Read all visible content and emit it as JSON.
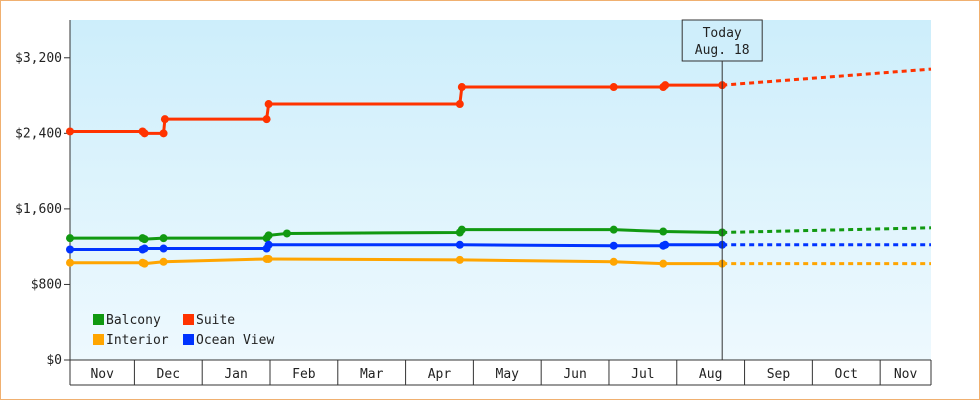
{
  "chart_data": {
    "type": "line",
    "today": {
      "label": "Today",
      "date": "Aug. 18",
      "month_index": 9.62
    },
    "xlim": [
      0,
      12.7
    ],
    "ylim": [
      0,
      3600
    ],
    "y_ticks": [
      {
        "value": 0,
        "label": "$0"
      },
      {
        "value": 800,
        "label": "$800"
      },
      {
        "value": 1600,
        "label": "$1,600"
      },
      {
        "value": 2400,
        "label": "$2,400"
      },
      {
        "value": 3200,
        "label": "$3,200"
      }
    ],
    "x_months": [
      {
        "label": "Nov",
        "start": 0,
        "end": 0.95
      },
      {
        "label": "Dec",
        "start": 0.95,
        "end": 1.95
      },
      {
        "label": "Jan",
        "start": 1.95,
        "end": 2.95
      },
      {
        "label": "Feb",
        "start": 2.95,
        "end": 3.95
      },
      {
        "label": "Mar",
        "start": 3.95,
        "end": 4.95
      },
      {
        "label": "Apr",
        "start": 4.95,
        "end": 5.95
      },
      {
        "label": "May",
        "start": 5.95,
        "end": 6.95
      },
      {
        "label": "Jun",
        "start": 6.95,
        "end": 7.95
      },
      {
        "label": "Jul",
        "start": 7.95,
        "end": 8.95
      },
      {
        "label": "Aug",
        "start": 8.95,
        "end": 9.95
      },
      {
        "label": "Sep",
        "start": 9.95,
        "end": 10.95
      },
      {
        "label": "Oct",
        "start": 10.95,
        "end": 11.95
      },
      {
        "label": "Nov",
        "start": 11.95,
        "end": 12.7
      }
    ],
    "series": [
      {
        "name": "Suite",
        "color": "#ff3300",
        "points": [
          [
            0,
            2420
          ],
          [
            1.07,
            2420
          ],
          [
            1.1,
            2400
          ],
          [
            1.38,
            2400
          ],
          [
            1.4,
            2550
          ],
          [
            2.9,
            2550
          ],
          [
            2.93,
            2710
          ],
          [
            5.75,
            2710
          ],
          [
            5.78,
            2890
          ],
          [
            8.02,
            2890
          ],
          [
            8.75,
            2890
          ],
          [
            8.78,
            2910
          ],
          [
            9.62,
            2910
          ]
        ],
        "projection": [
          [
            9.62,
            2910
          ],
          [
            12.7,
            3080
          ]
        ]
      },
      {
        "name": "Balcony",
        "color": "#119911",
        "points": [
          [
            0,
            1290
          ],
          [
            1.07,
            1290
          ],
          [
            1.1,
            1280
          ],
          [
            1.38,
            1290
          ],
          [
            2.9,
            1290
          ],
          [
            2.93,
            1320
          ],
          [
            3.2,
            1340
          ],
          [
            5.75,
            1350
          ],
          [
            5.78,
            1380
          ],
          [
            8.02,
            1380
          ],
          [
            8.75,
            1360
          ],
          [
            9.62,
            1350
          ]
        ],
        "projection": [
          [
            9.62,
            1350
          ],
          [
            12.7,
            1400
          ]
        ]
      },
      {
        "name": "Ocean View",
        "color": "#0033ff",
        "points": [
          [
            0,
            1170
          ],
          [
            1.07,
            1170
          ],
          [
            1.1,
            1180
          ],
          [
            1.38,
            1180
          ],
          [
            2.9,
            1180
          ],
          [
            2.93,
            1220
          ],
          [
            5.75,
            1220
          ],
          [
            5.78,
            1220
          ],
          [
            8.02,
            1210
          ],
          [
            8.75,
            1210
          ],
          [
            8.78,
            1220
          ],
          [
            9.62,
            1220
          ]
        ],
        "projection": [
          [
            9.62,
            1220
          ],
          [
            12.7,
            1220
          ]
        ]
      },
      {
        "name": "Interior",
        "color": "#ffa500",
        "points": [
          [
            0,
            1030
          ],
          [
            1.07,
            1030
          ],
          [
            1.1,
            1020
          ],
          [
            1.38,
            1040
          ],
          [
            2.9,
            1070
          ],
          [
            2.93,
            1070
          ],
          [
            5.75,
            1060
          ],
          [
            5.78,
            1060
          ],
          [
            8.02,
            1040
          ],
          [
            8.75,
            1020
          ],
          [
            9.62,
            1020
          ]
        ],
        "projection": [
          [
            9.62,
            1020
          ],
          [
            12.7,
            1020
          ]
        ]
      }
    ],
    "markers": {
      "Suite": [
        0,
        1.07,
        1.1,
        1.38,
        1.4,
        2.9,
        2.93,
        5.75,
        5.78,
        8.02,
        8.75,
        8.78,
        9.62
      ],
      "Balcony": [
        0,
        1.07,
        1.1,
        1.38,
        2.9,
        2.93,
        3.2,
        5.75,
        5.78,
        8.02,
        8.75,
        9.62
      ],
      "Ocean View": [
        0,
        1.07,
        1.1,
        1.38,
        2.9,
        2.93,
        5.75,
        8.02,
        8.75,
        8.78,
        9.62
      ],
      "Interior": [
        0,
        1.07,
        1.1,
        1.38,
        2.9,
        2.93,
        5.75,
        8.02,
        8.75,
        9.62
      ]
    },
    "legend": {
      "placement": "bottom-left",
      "entries": [
        {
          "name": "Balcony",
          "color": "#119911"
        },
        {
          "name": "Suite",
          "color": "#ff3300"
        },
        {
          "name": "Interior",
          "color": "#ffa500"
        },
        {
          "name": "Ocean View",
          "color": "#0033ff"
        }
      ]
    },
    "background": {
      "top": "#cdeefb",
      "bottom": "#eef9fe"
    }
  }
}
